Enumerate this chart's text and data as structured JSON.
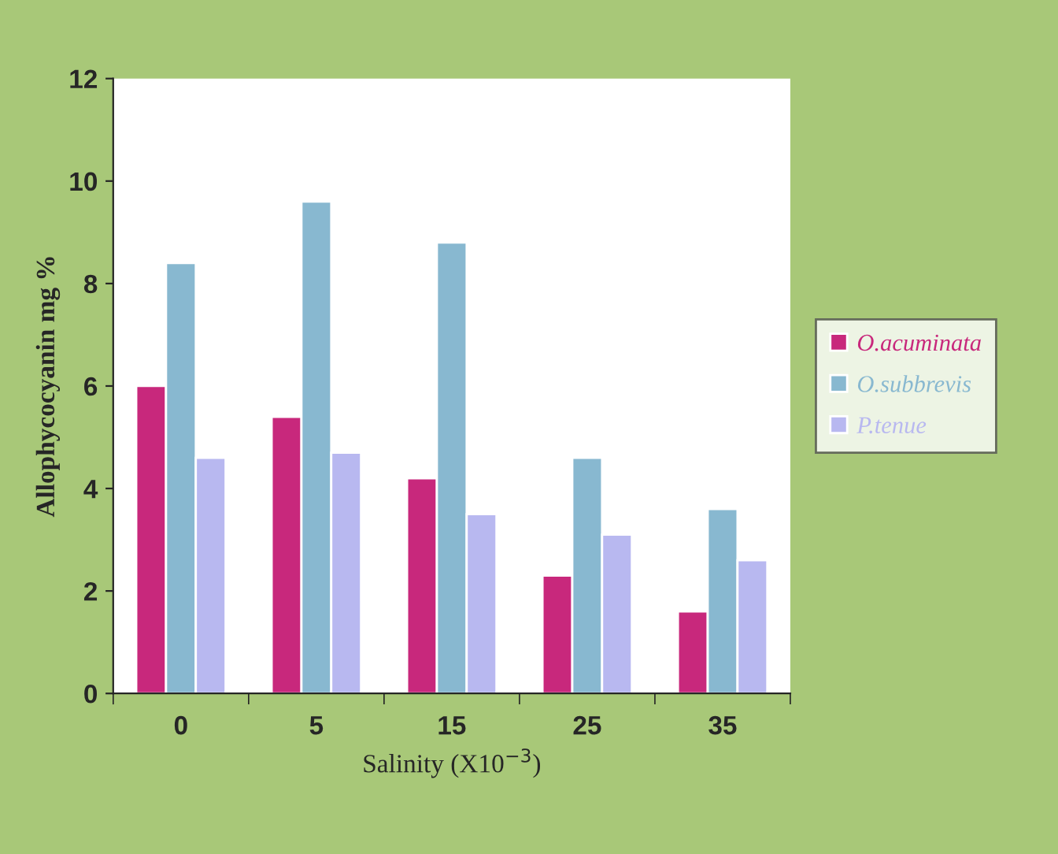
{
  "chart_data": {
    "type": "bar",
    "xlabel": "Salinity (X10$^{−3}$)",
    "ylabel": "Allophycocyanin mg %",
    "categories": [
      "0",
      "5",
      "15",
      "25",
      "35"
    ],
    "series": [
      {
        "name": "O.acuminata",
        "color": "#c8287c",
        "values": [
          6.0,
          5.4,
          4.2,
          2.3,
          1.6
        ]
      },
      {
        "name": "O.subbrevis",
        "color": "#88b8d0",
        "values": [
          8.4,
          9.6,
          8.8,
          4.6,
          3.6
        ]
      },
      {
        "name": "P.tenue",
        "color": "#b8b8f0",
        "values": [
          4.6,
          4.7,
          3.5,
          3.1,
          2.6
        ]
      }
    ],
    "ylim": [
      0,
      12
    ],
    "yticks": [
      0,
      2,
      4,
      6,
      8,
      10,
      12
    ],
    "grid": false,
    "legend": "right"
  }
}
